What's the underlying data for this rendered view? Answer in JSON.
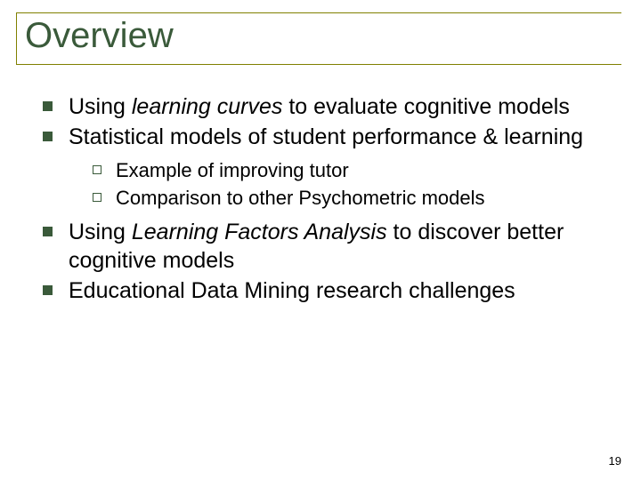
{
  "title": "Overview",
  "items": [
    {
      "prefix": "Using ",
      "italic": "learning curves",
      "suffix": " to evaluate cognitive models"
    },
    {
      "text": "Statistical models of student performance & learning"
    }
  ],
  "subitems": [
    {
      "text": "Example of improving tutor"
    },
    {
      "text": "Comparison to other Psychometric models"
    }
  ],
  "items2": [
    {
      "prefix": "Using ",
      "italic": "Learning Factors Analysis",
      "suffix": " to discover better cognitive models"
    },
    {
      "text": "Educational Data Mining research challenges"
    }
  ],
  "pageNumber": "19",
  "colors": {
    "title": "#3a5a3a",
    "underline": "#808000",
    "bullet_l1": "#3a5a3a",
    "bullet_l2_border": "#3a5a3a",
    "text": "#000000",
    "background": "#ffffff"
  },
  "fontsize": {
    "title": 40,
    "l1": 25,
    "l2": 22,
    "pagenum": 13
  }
}
